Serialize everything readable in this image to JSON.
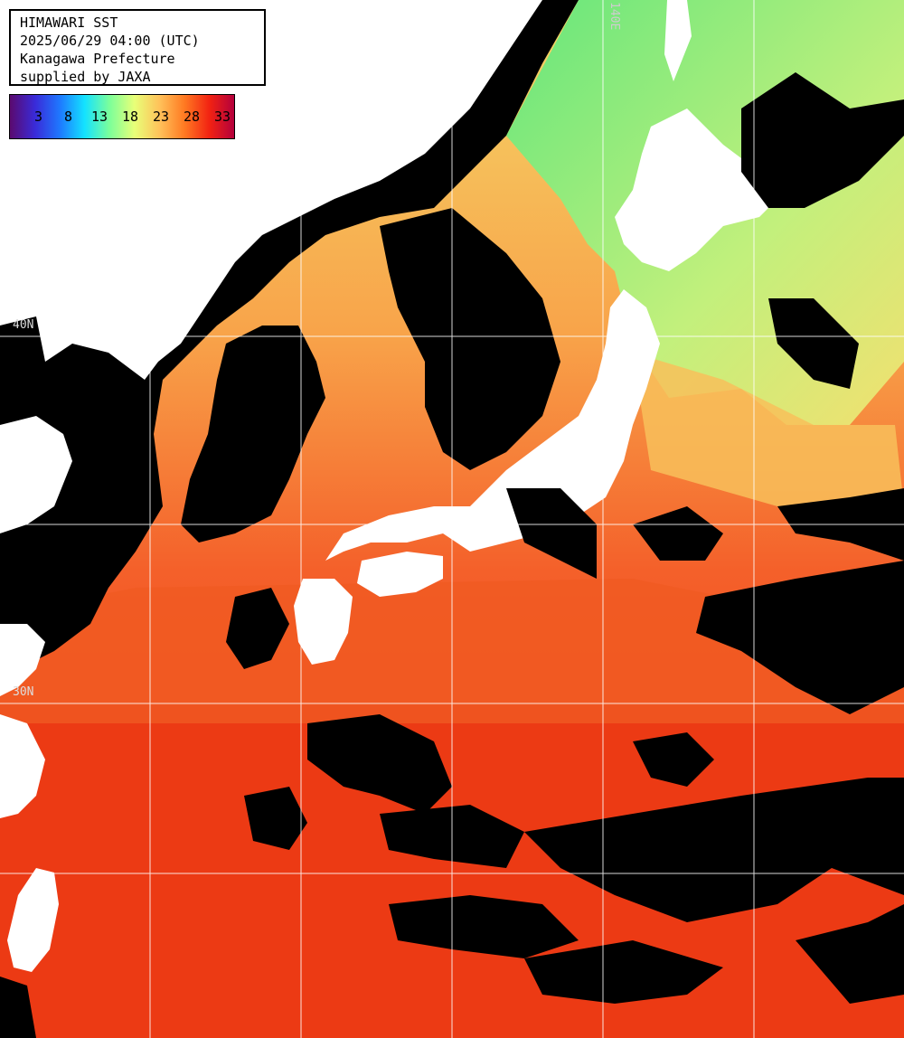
{
  "info": {
    "title": "HIMAWARI SST",
    "datetime": "2025/06/29 04:00 (UTC)",
    "region": "Kanagawa Prefecture",
    "supplier": "supplied by JAXA"
  },
  "legend": {
    "labels": [
      "3",
      "8",
      "13",
      "18",
      "23",
      "28",
      "33"
    ],
    "colors": [
      "#5a0a6e",
      "#3a2ad8",
      "#1e78ff",
      "#14e2ff",
      "#7cff9a",
      "#e8ff78",
      "#ffc25a",
      "#ff7a22",
      "#f22312",
      "#b4003c"
    ]
  },
  "grid": {
    "lat_labels": [
      "40N",
      "30N"
    ],
    "lon_labels": [
      "140E"
    ]
  },
  "colors": {
    "land": "#ffffff",
    "cloud": "#000000",
    "grid_line": "#ffffff",
    "sea_warm": "#f0401a",
    "sea_mid": "#fa7a30",
    "sea_cool": "#f6e870",
    "sea_cold": "#8cf07a"
  }
}
